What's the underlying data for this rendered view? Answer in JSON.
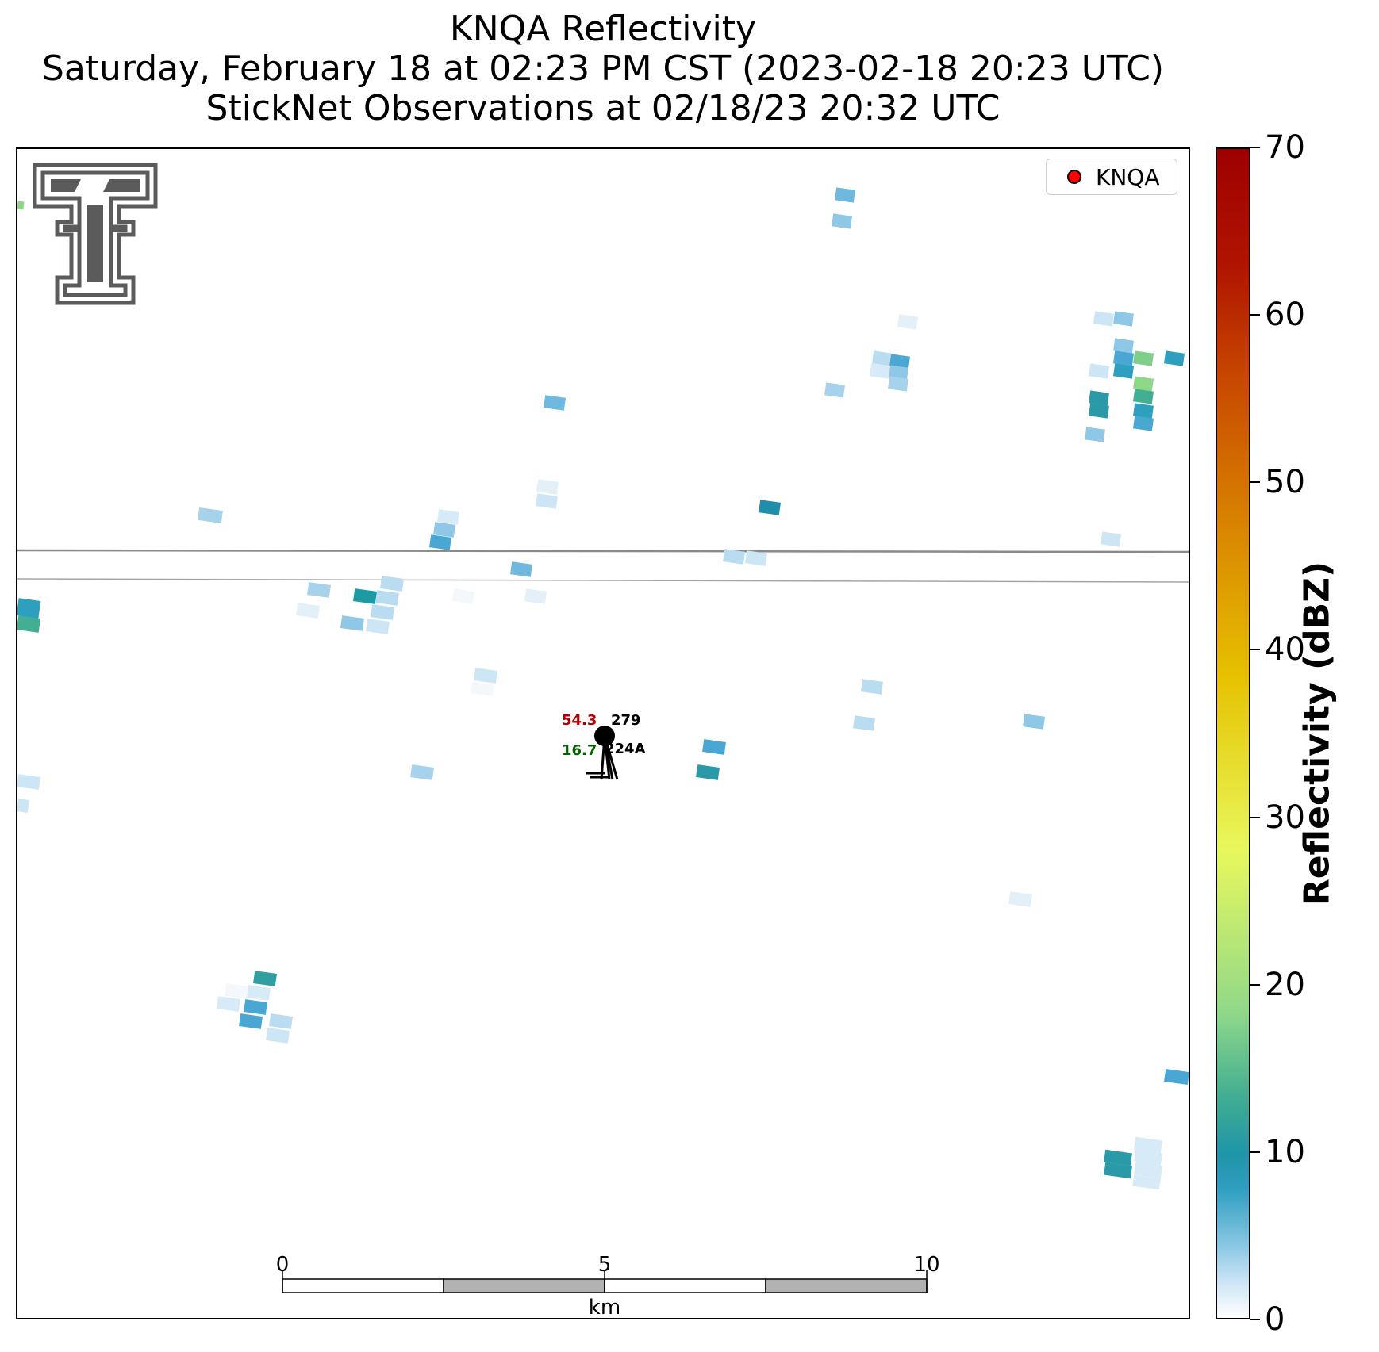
{
  "title": {
    "line1": "KNQA Reflectivity",
    "line2": "Saturday, February 18 at 02:23 PM CST (2023-02-18 20:23 UTC)",
    "line3": "StickNet Observations at 02/18/23 20:32 UTC"
  },
  "legend": {
    "label": "KNQA",
    "marker_color": "#ff0000"
  },
  "scale_bar": {
    "ticks": [
      "0",
      "5",
      "10"
    ],
    "unit": "km"
  },
  "station": {
    "id": "224A",
    "temperature": "54.3",
    "wind_direction": "279",
    "dewpoint": "16.7",
    "temp_color": "#b40000",
    "dew_color": "#006400"
  },
  "colorbar": {
    "label": "Reflectivity (dBZ)",
    "ticks": [
      "0",
      "10",
      "20",
      "30",
      "40",
      "50",
      "60",
      "70"
    ],
    "min": 0,
    "max": 70
  },
  "logo": {
    "icon": "texas-tech-double-t-logo",
    "color": "#5b5b5b"
  }
}
